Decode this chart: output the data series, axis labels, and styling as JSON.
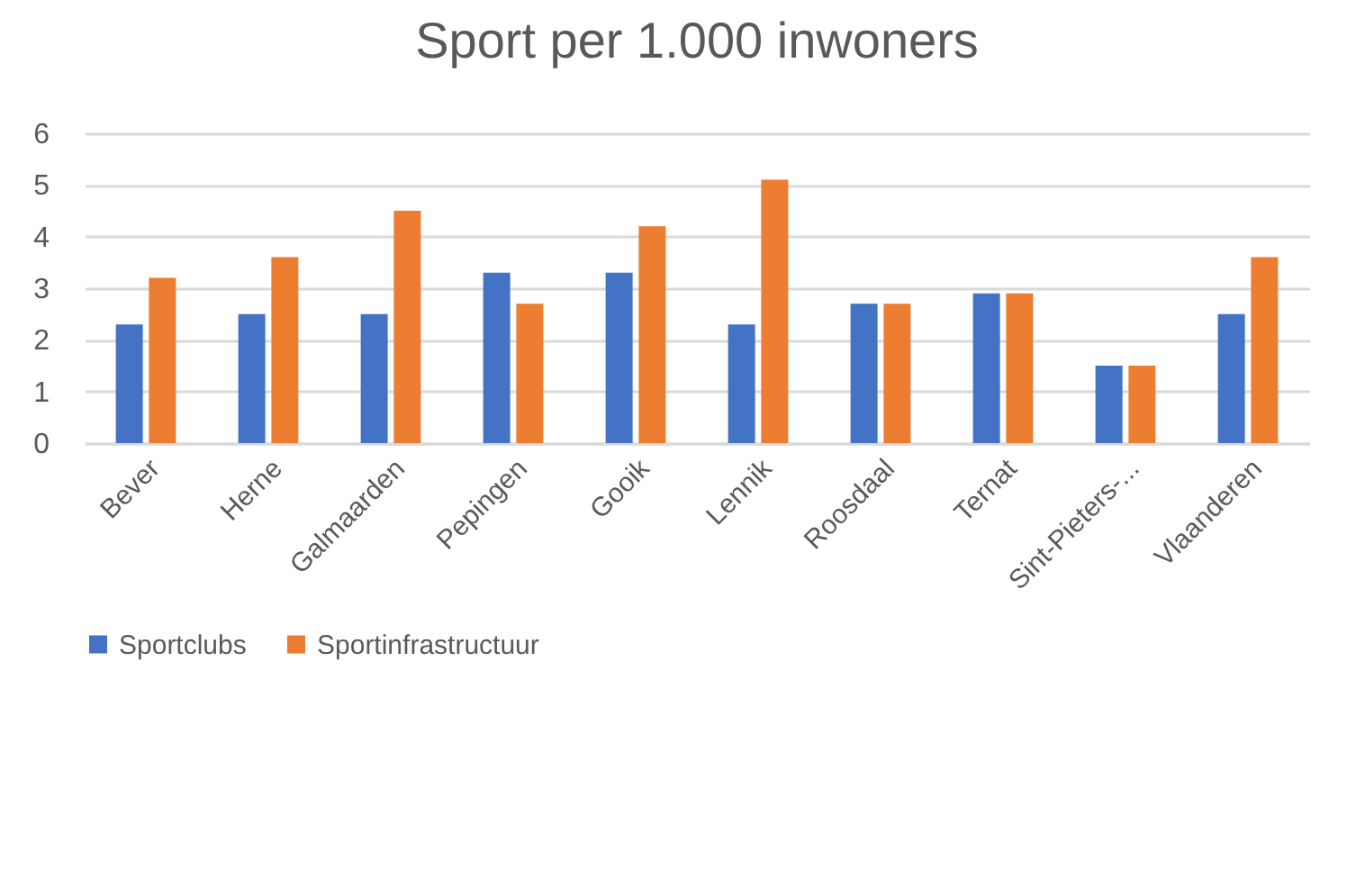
{
  "chart_data": {
    "type": "bar",
    "title": "Sport per 1.000 inwoners",
    "categories": [
      "Bever",
      "Herne",
      "Galmaarden",
      "Pepingen",
      "Gooik",
      "Lennik",
      "Roosdaal",
      "Ternat",
      "Sint-Pieters-...",
      "Vlaanderen"
    ],
    "series": [
      {
        "name": "Sportclubs",
        "color": "#4472c4",
        "values": [
          2.3,
          2.5,
          2.5,
          3.3,
          3.3,
          2.3,
          2.7,
          2.9,
          1.5,
          2.5
        ]
      },
      {
        "name": "Sportinfrastructuur",
        "color": "#ed7d31",
        "values": [
          3.2,
          3.6,
          4.5,
          2.7,
          4.2,
          5.1,
          2.7,
          2.9,
          1.5,
          3.6
        ]
      }
    ],
    "ylim": [
      0,
      6
    ],
    "yticks": [
      0,
      1,
      2,
      3,
      4,
      5,
      6
    ],
    "grid": "y",
    "legend": "bottom"
  }
}
